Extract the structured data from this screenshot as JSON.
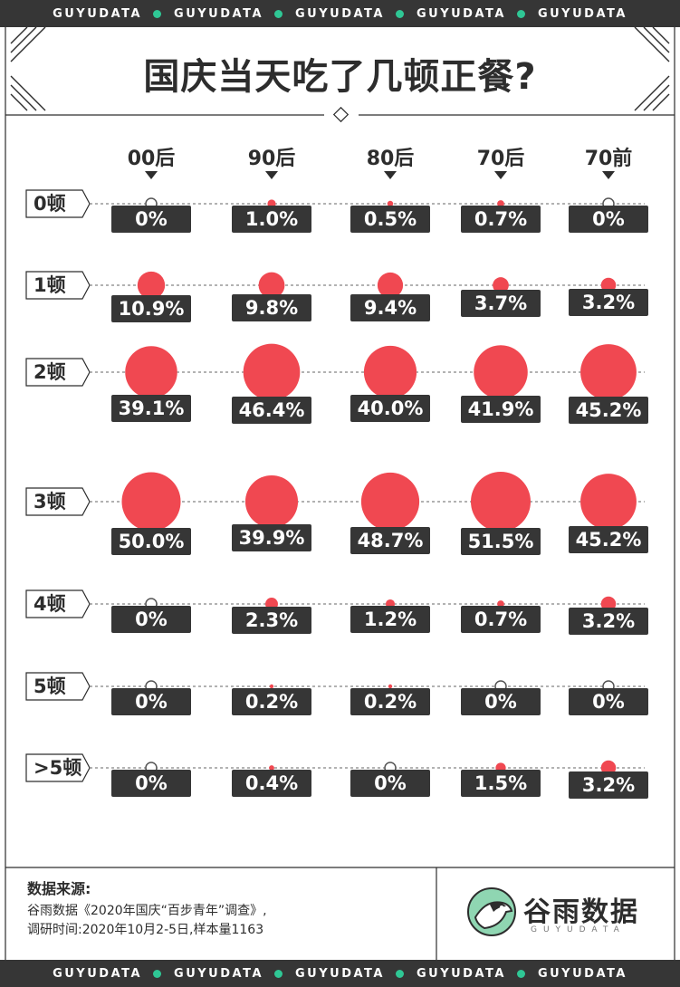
{
  "band_word": "GUYUDATA",
  "title": "国庆当天吃了几顿正餐?",
  "source": {
    "title": "数据来源:",
    "line1": "谷雨数据《2020年国庆“百步青年”调查》,",
    "line2": "调研时间:2020年10月2-5日,样本量1163"
  },
  "logo": {
    "text": "谷雨数据",
    "sub": "GUYUDATA"
  },
  "colors": {
    "dot": "#f04851",
    "label_bg": "#363636",
    "band_dot": "#2fc795",
    "logo_green": "#8fd6b2"
  },
  "chart_data": {
    "type": "bubble-matrix",
    "title": "国庆当天吃了几顿正餐?",
    "columns": [
      "00后",
      "90后",
      "80后",
      "70后",
      "70前"
    ],
    "rows": [
      {
        "label": "0顿",
        "values": [
          0,
          1.0,
          0.5,
          0.7,
          0
        ],
        "labels": [
          "0%",
          "1.0%",
          "0.5%",
          "0.7%",
          "0%"
        ]
      },
      {
        "label": "1顿",
        "values": [
          10.9,
          9.8,
          9.4,
          3.7,
          3.2
        ],
        "labels": [
          "10.9%",
          "9.8%",
          "9.4%",
          "3.7%",
          "3.2%"
        ]
      },
      {
        "label": "2顿",
        "values": [
          39.1,
          46.4,
          40.0,
          41.9,
          45.2
        ],
        "labels": [
          "39.1%",
          "46.4%",
          "40.0%",
          "41.9%",
          "45.2%"
        ]
      },
      {
        "label": "3顿",
        "values": [
          50.0,
          39.9,
          48.7,
          51.5,
          45.2
        ],
        "labels": [
          "50.0%",
          "39.9%",
          "48.7%",
          "51.5%",
          "45.2%"
        ]
      },
      {
        "label": "4顿",
        "values": [
          0,
          2.3,
          1.2,
          0.7,
          3.2
        ],
        "labels": [
          "0%",
          "2.3%",
          "1.2%",
          "0.7%",
          "3.2%"
        ]
      },
      {
        "label": "5顿",
        "values": [
          0,
          0.2,
          0.2,
          0,
          0
        ],
        "labels": [
          "0%",
          "0.2%",
          "0.2%",
          "0%",
          "0%"
        ]
      },
      {
        "label": ">5顿",
        "values": [
          0,
          0.4,
          0,
          1.5,
          3.2
        ],
        "labels": [
          "0%",
          "0.4%",
          "0%",
          "1.5%",
          "3.2%"
        ]
      }
    ],
    "unit": "%"
  }
}
